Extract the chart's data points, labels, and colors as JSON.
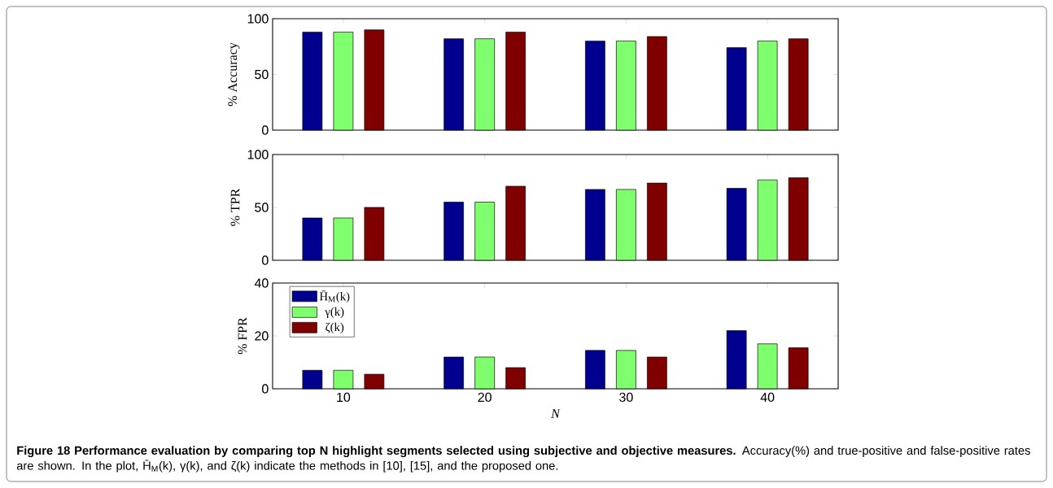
{
  "chart_data": [
    {
      "type": "bar",
      "categories": [
        "10",
        "20",
        "30",
        "40"
      ],
      "ylabel": "% Accuracy",
      "ylim": [
        0,
        100
      ],
      "yticks": [
        0,
        50,
        100
      ],
      "tick_labels": "y",
      "series": [
        {
          "color": "#00008f",
          "values": [
            88,
            82,
            80,
            74
          ]
        },
        {
          "color": "#80ff6e",
          "values": [
            88,
            82,
            80,
            80
          ]
        },
        {
          "color": "#800000",
          "values": [
            90,
            88,
            84,
            82
          ]
        }
      ]
    },
    {
      "type": "bar",
      "categories": [
        "10",
        "20",
        "30",
        "40"
      ],
      "ylabel": "% TPR",
      "ylim": [
        0,
        100
      ],
      "yticks": [
        0,
        50,
        100
      ],
      "tick_labels": "y",
      "series": [
        {
          "color": "#00008f",
          "values": [
            40,
            55,
            67,
            68
          ]
        },
        {
          "color": "#80ff6e",
          "values": [
            40,
            55,
            67,
            76
          ]
        },
        {
          "color": "#800000",
          "values": [
            50,
            70,
            73,
            78
          ]
        }
      ]
    },
    {
      "type": "bar",
      "categories": [
        "10",
        "20",
        "30",
        "40"
      ],
      "ylabel": "% FPR",
      "xlabel": "N",
      "ylim": [
        0,
        40
      ],
      "yticks": [
        0,
        20,
        40
      ],
      "legend": "top left",
      "series": [
        {
          "name": "H̄$_{M}$(k)",
          "color": "#00008f",
          "values": [
            7,
            12,
            14.5,
            22
          ]
        },
        {
          "name": "γ(k)",
          "color": "#80ff6e",
          "values": [
            7,
            12,
            14.5,
            17
          ]
        },
        {
          "name": "ζ(k)",
          "color": "#800000",
          "values": [
            5.5,
            8,
            12,
            15.5
          ]
        }
      ],
      "annotations": [
        "**Figure 18 Performance evaluation by comparing top N highlight segments selected using subjective and objective measures.** Accuracy(%) and true-positive and false-positive rates are shown. In the plot, H̄$_{M}$(k), γ(k), and ζ(k) indicate the methods in [10], [15], and the proposed one."
      ]
    }
  ]
}
